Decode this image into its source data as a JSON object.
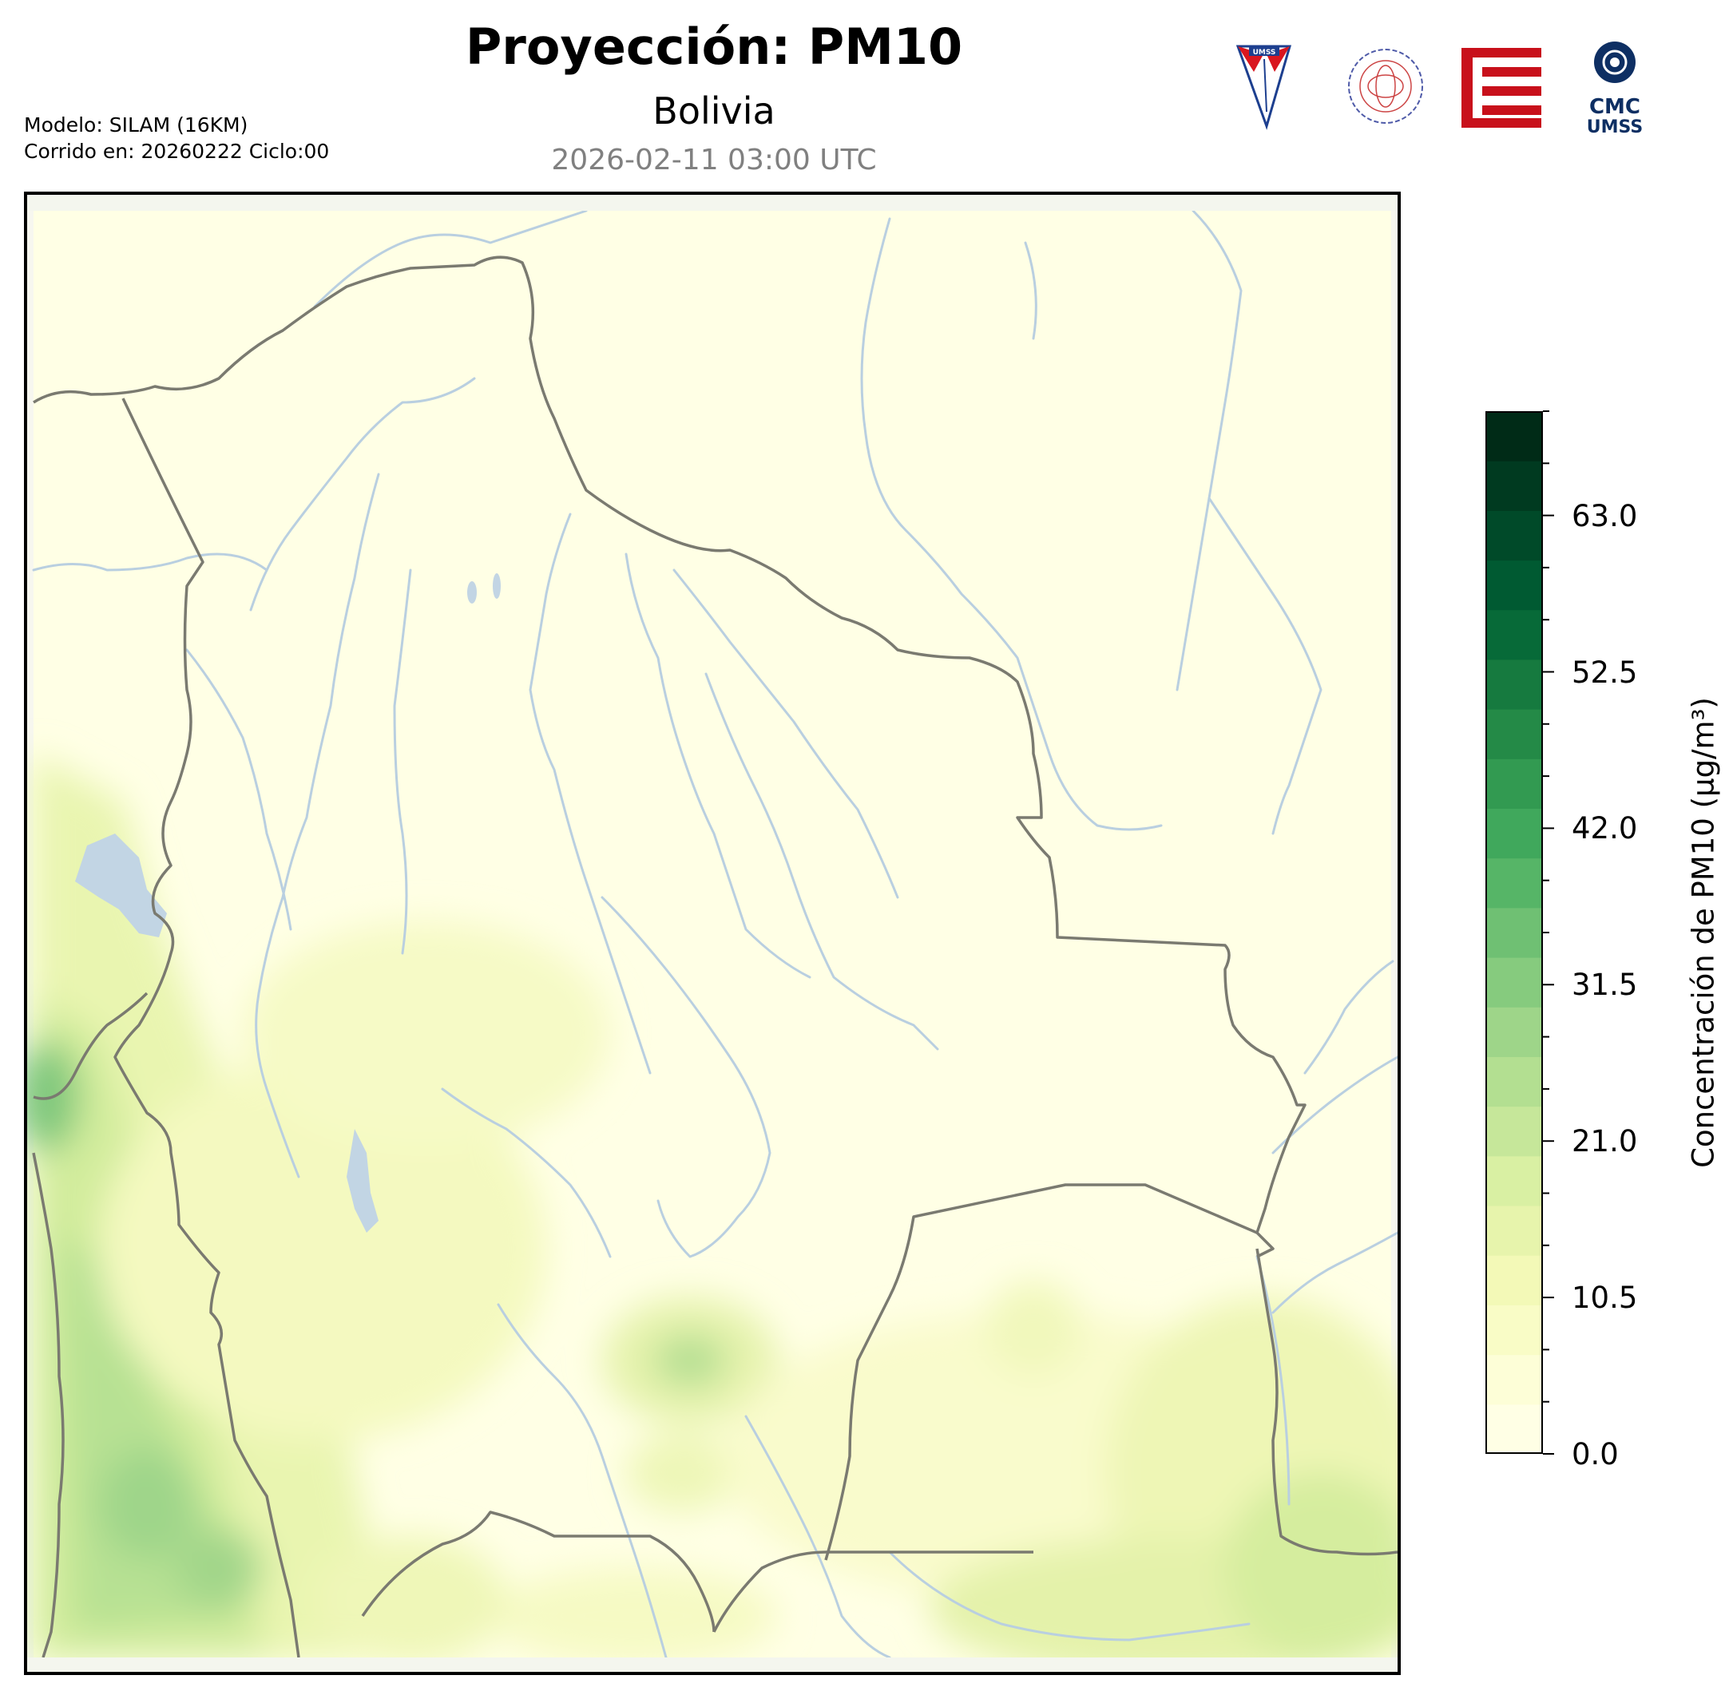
{
  "header": {
    "title": "Proyección: PM10",
    "subtitle": "Bolivia",
    "datetime": "2026-02-11 03:00 UTC",
    "model_line": "Modelo: SILAM (16KM)",
    "run_line": "Corrido en: 20260222 Ciclo:00"
  },
  "logos": {
    "umss_shield_text": "UMSS",
    "cmc_text": "CMC",
    "cmc_sub": "UMSS",
    "physics_seal_text": "DEPARTAMENTO DE FÍSICA"
  },
  "colorbar": {
    "label": "Concentración de PM10 (μg/m³)",
    "ticks": [
      "0.0",
      "10.5",
      "21.0",
      "31.5",
      "42.0",
      "52.5",
      "63.0"
    ],
    "min": 0,
    "max": 70,
    "levels": 20,
    "colors": [
      "#ffffe5",
      "#fdfed7",
      "#f9fcc6",
      "#f3f9b7",
      "#e7f4ac",
      "#d9f0a3",
      "#c6e79a",
      "#b3df91",
      "#9ed589",
      "#86cb7e",
      "#6fc073",
      "#56b567",
      "#40a85c",
      "#329a51",
      "#248a47",
      "#167a3f",
      "#076a38",
      "#005a32",
      "#004a29",
      "#003a20",
      "#002b17"
    ]
  },
  "map": {
    "style": "filled contours of PM10 concentration with borders and rivers",
    "border_color": "#7a7a70",
    "river_color": "#b9cfe0",
    "lake_color": "#c2d5e4"
  }
}
